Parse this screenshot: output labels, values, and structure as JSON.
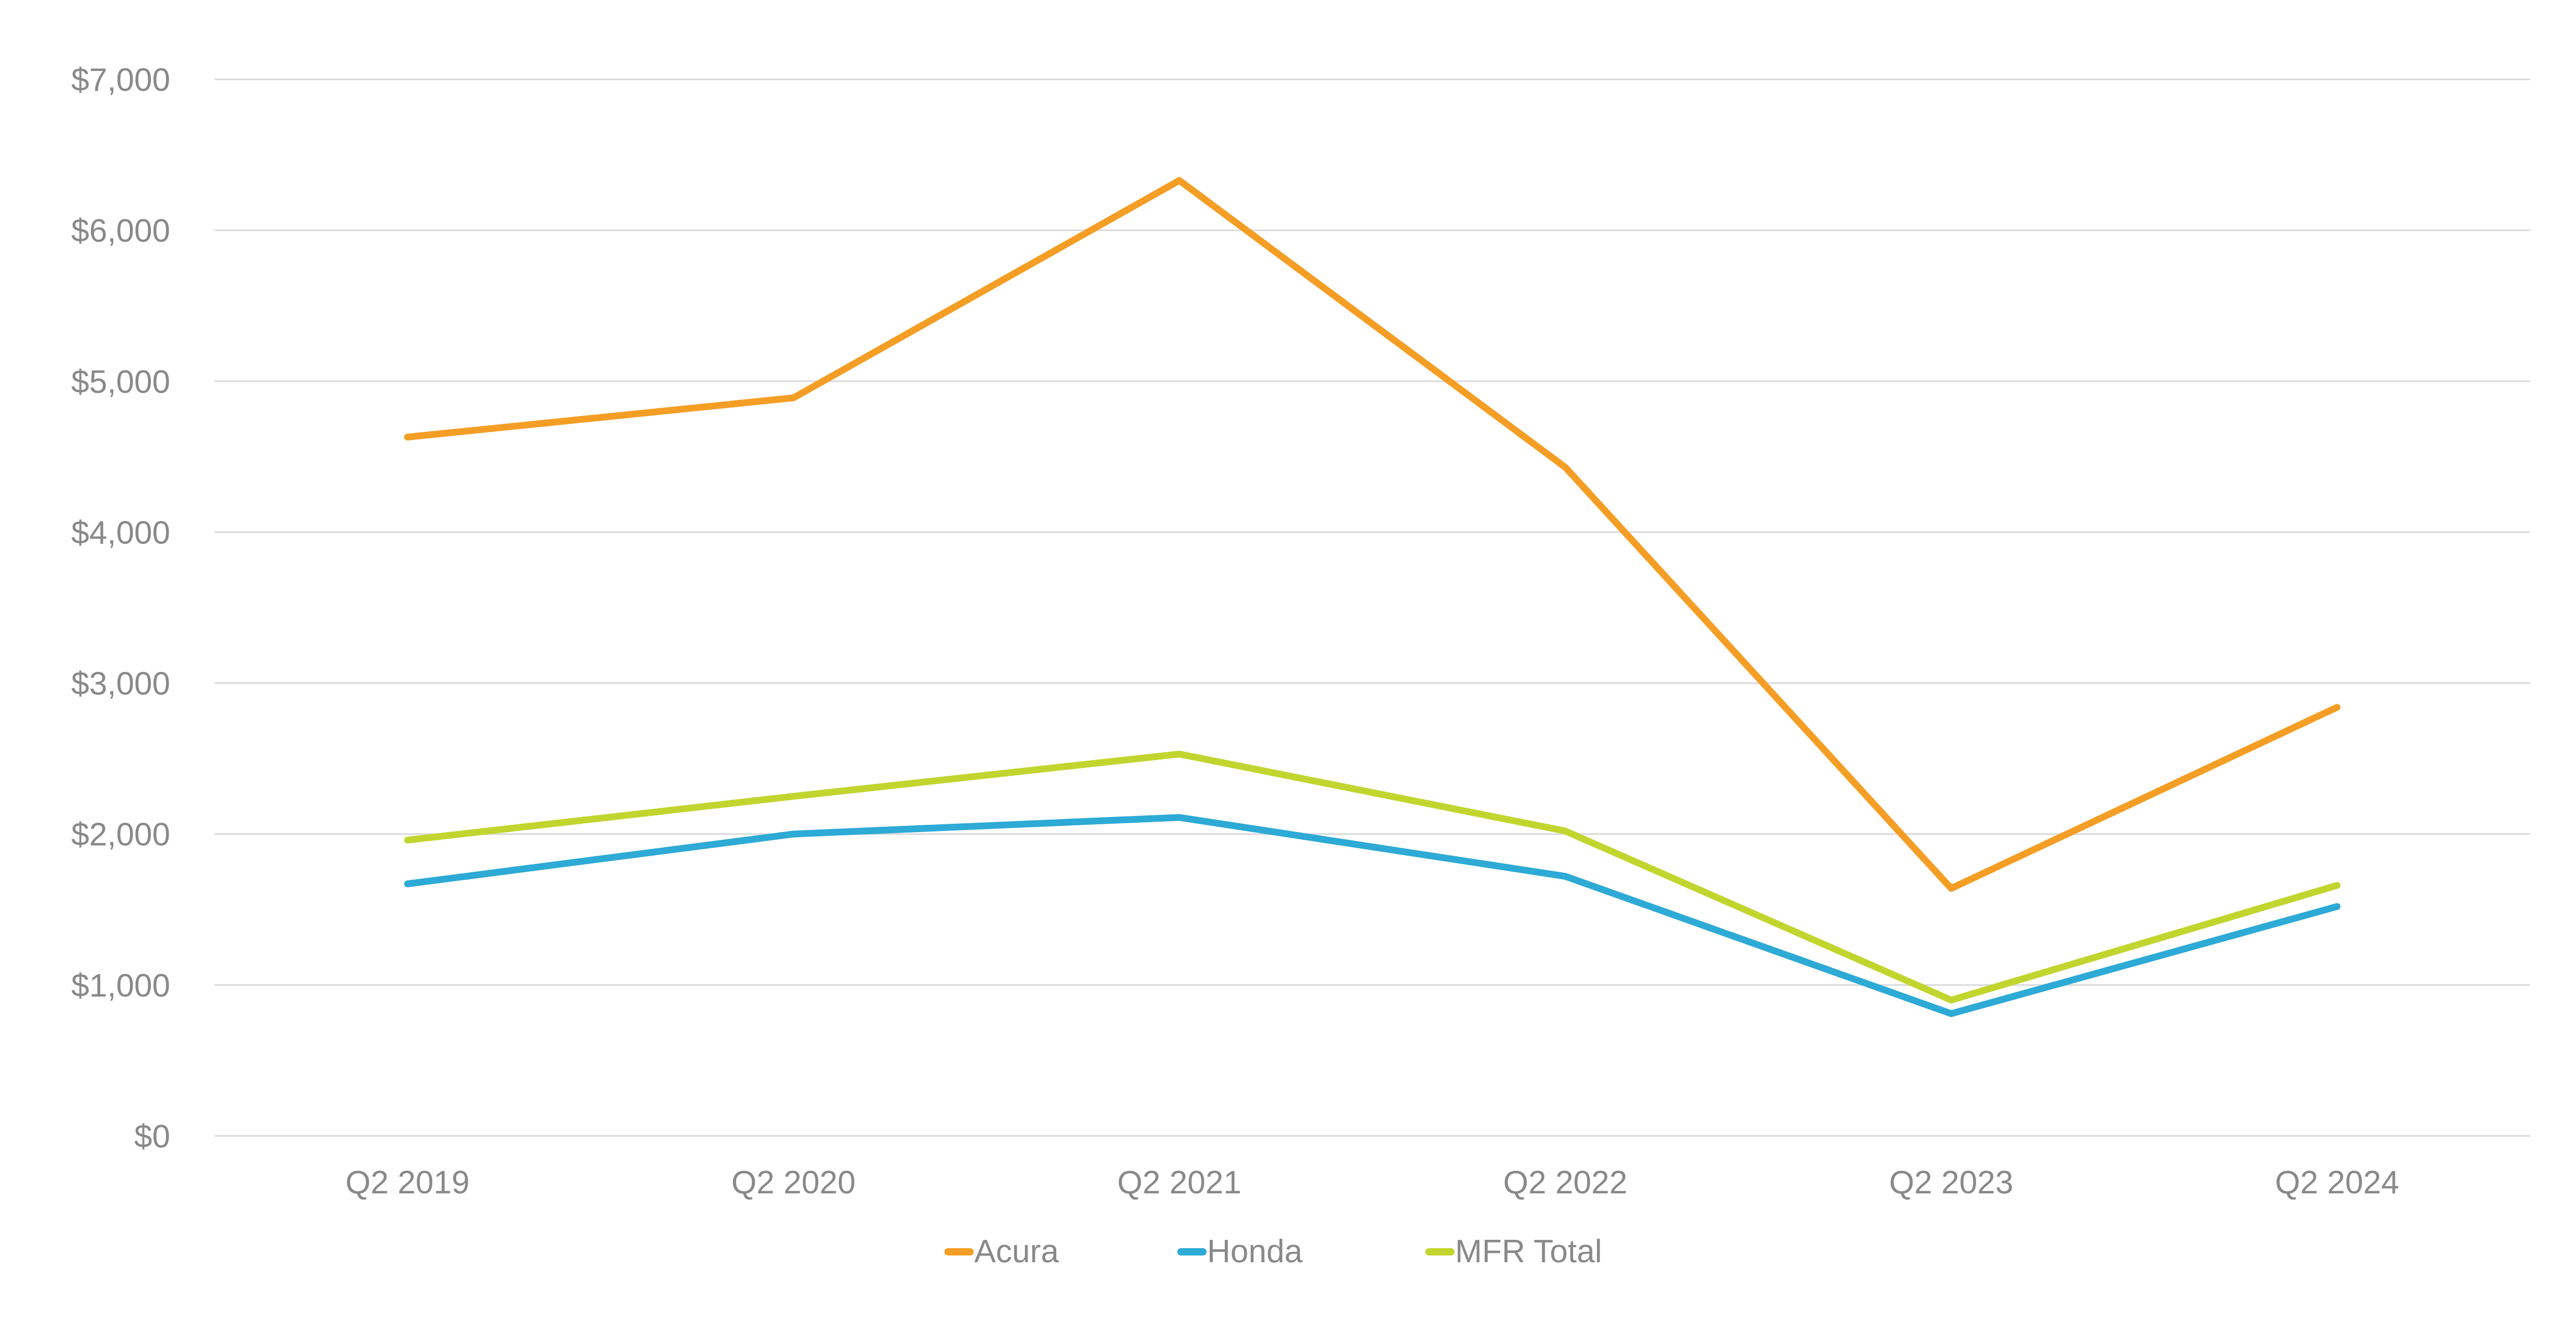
{
  "chart_data": {
    "type": "line",
    "title": "",
    "xlabel": "",
    "ylabel": "",
    "categories": [
      "Q2 2019",
      "Q2 2020",
      "Q2 2021",
      "Q2 2022",
      "Q2 2023",
      "Q2 2024"
    ],
    "ylim": [
      0,
      7000
    ],
    "yticks": [
      0,
      1000,
      2000,
      3000,
      4000,
      5000,
      6000,
      7000
    ],
    "ytick_labels": [
      "$0",
      "$1,000",
      "$2,000",
      "$3,000",
      "$4,000",
      "$5,000",
      "$6,000",
      "$7,000"
    ],
    "grid": true,
    "legend_position": "bottom",
    "series": [
      {
        "name": "Acura",
        "color": "#F59E25",
        "values": [
          4630,
          4890,
          6330,
          4430,
          1640,
          2840
        ]
      },
      {
        "name": "Honda",
        "color": "#2DAAD5",
        "values": [
          1670,
          2000,
          2110,
          1720,
          810,
          1520
        ]
      },
      {
        "name": "MFR Total",
        "color": "#C2D52F",
        "values": [
          1960,
          2250,
          2530,
          2020,
          900,
          1660
        ]
      }
    ]
  }
}
